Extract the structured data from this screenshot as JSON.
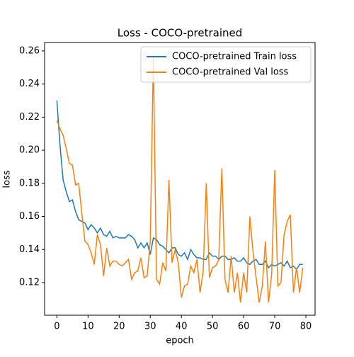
{
  "chart_data": {
    "type": "line",
    "title": "Loss - COCO-pretrained",
    "xlabel": "epoch",
    "ylabel": "loss",
    "x": [
      0,
      1,
      2,
      3,
      4,
      5,
      6,
      7,
      8,
      9,
      10,
      11,
      12,
      13,
      14,
      15,
      16,
      17,
      18,
      19,
      20,
      21,
      22,
      23,
      24,
      25,
      26,
      27,
      28,
      29,
      30,
      31,
      32,
      33,
      34,
      35,
      36,
      37,
      38,
      39,
      40,
      41,
      42,
      43,
      44,
      45,
      46,
      47,
      48,
      49,
      50,
      51,
      52,
      53,
      54,
      55,
      56,
      57,
      58,
      59,
      60,
      61,
      62,
      63,
      64,
      65,
      66,
      67,
      68,
      69,
      70,
      71,
      72,
      73,
      74,
      75,
      76,
      77,
      78,
      79
    ],
    "series": [
      {
        "name": "COCO-pretrained Train loss",
        "color": "#1f77b4",
        "values": [
          0.23,
          0.203,
          0.182,
          0.175,
          0.169,
          0.17,
          0.163,
          0.158,
          0.157,
          0.156,
          0.152,
          0.155,
          0.153,
          0.15,
          0.153,
          0.149,
          0.148,
          0.151,
          0.147,
          0.148,
          0.147,
          0.147,
          0.147,
          0.149,
          0.148,
          0.146,
          0.141,
          0.144,
          0.141,
          0.144,
          0.137,
          0.147,
          0.146,
          0.143,
          0.142,
          0.14,
          0.138,
          0.141,
          0.141,
          0.137,
          0.136,
          0.138,
          0.134,
          0.14,
          0.137,
          0.135,
          0.135,
          0.134,
          0.134,
          0.138,
          0.136,
          0.136,
          0.134,
          0.136,
          0.136,
          0.134,
          0.134,
          0.135,
          0.133,
          0.133,
          0.135,
          0.132,
          0.131,
          0.133,
          0.134,
          0.131,
          0.131,
          0.133,
          0.129,
          0.131,
          0.13,
          0.131,
          0.132,
          0.13,
          0.133,
          0.129,
          0.13,
          0.128,
          0.131,
          0.131
        ]
      },
      {
        "name": "COCO-pretrained Val loss",
        "color": "#ff7f0e",
        "values": [
          0.218,
          0.213,
          0.209,
          0.201,
          0.192,
          0.191,
          0.179,
          0.18,
          0.162,
          0.145,
          0.143,
          0.138,
          0.131,
          0.149,
          0.143,
          0.124,
          0.141,
          0.13,
          0.133,
          0.133,
          0.131,
          0.13,
          0.132,
          0.134,
          0.122,
          0.126,
          0.127,
          0.135,
          0.123,
          0.124,
          0.145,
          0.257,
          0.122,
          0.119,
          0.132,
          0.127,
          0.182,
          0.132,
          0.14,
          0.132,
          0.111,
          0.118,
          0.119,
          0.13,
          0.126,
          0.134,
          0.114,
          0.127,
          0.18,
          0.123,
          0.129,
          0.13,
          0.134,
          0.189,
          0.122,
          0.114,
          0.136,
          0.114,
          0.126,
          0.108,
          0.126,
          0.114,
          0.16,
          0.139,
          0.123,
          0.108,
          0.118,
          0.145,
          0.108,
          0.125,
          0.188,
          0.118,
          0.12,
          0.149,
          0.157,
          0.161,
          0.114,
          0.129,
          0.114,
          0.129
        ]
      }
    ],
    "xlim": [
      -3.95,
      82.95
    ],
    "xticks": [
      0,
      10,
      20,
      30,
      40,
      50,
      60,
      70,
      80
    ],
    "ylim": [
      0.1003,
      0.2651
    ],
    "yticks": [
      {
        "value": 0.12,
        "label": "0.12"
      },
      {
        "value": 0.14,
        "label": "0.14"
      },
      {
        "value": 0.16,
        "label": "0.16"
      },
      {
        "value": 0.18,
        "label": "0.18"
      },
      {
        "value": 0.2,
        "label": "0.20"
      },
      {
        "value": 0.22,
        "label": "0.22"
      },
      {
        "value": 0.24,
        "label": "0.24"
      },
      {
        "value": 0.26,
        "label": "0.26"
      }
    ],
    "legend": "upper right",
    "grid": false
  }
}
